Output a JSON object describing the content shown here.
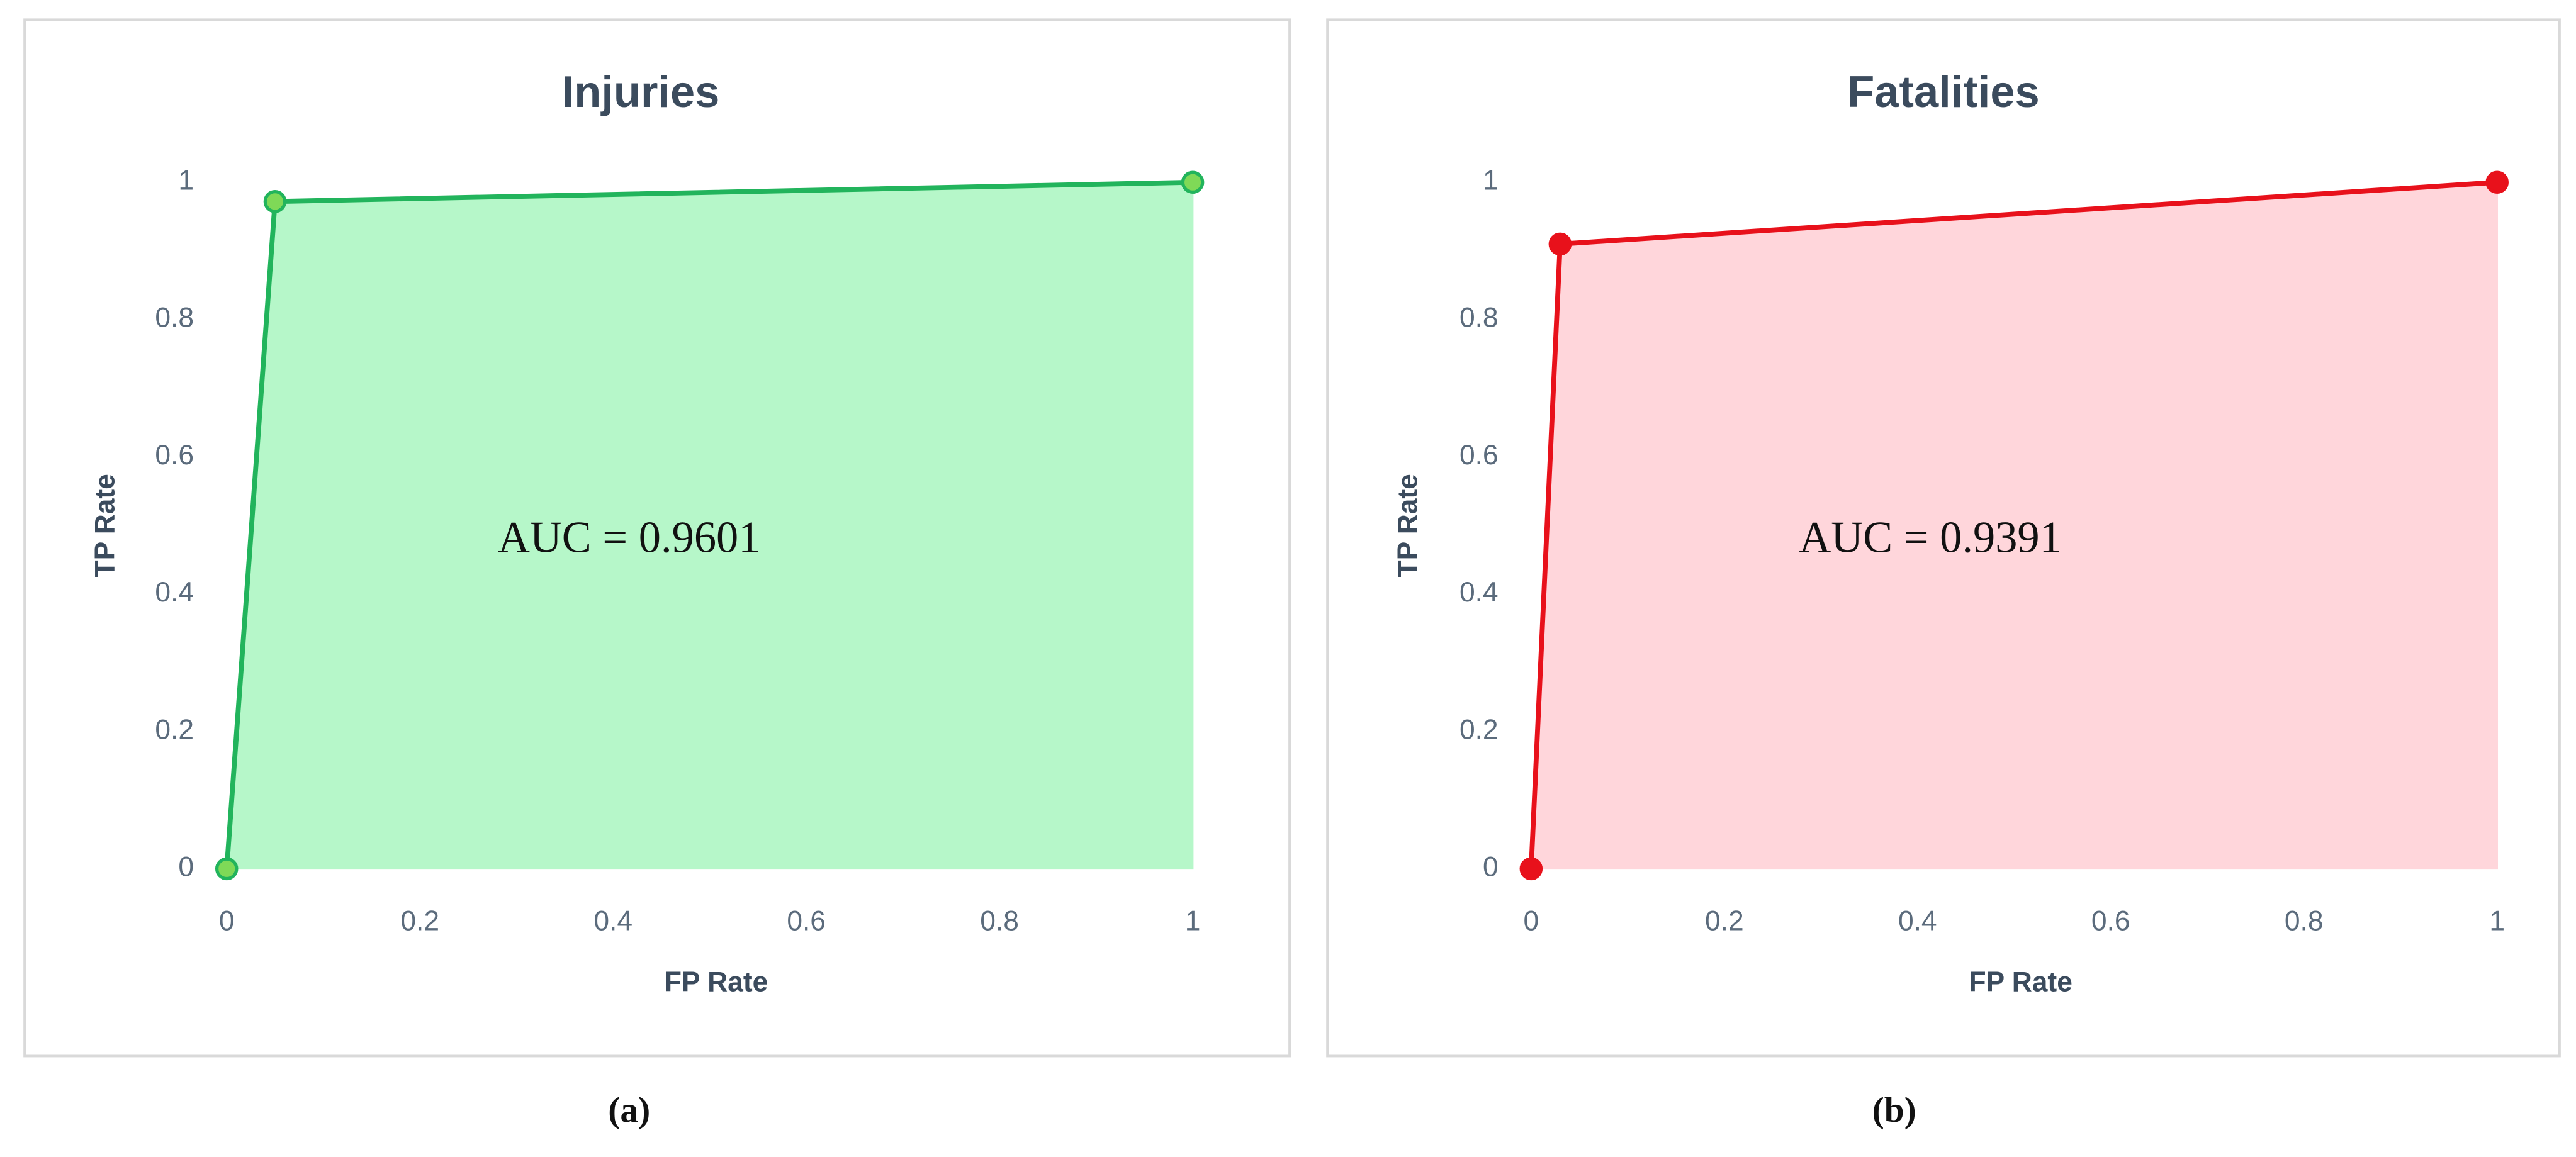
{
  "chart_data": [
    {
      "type": "area",
      "title": "Injuries",
      "x_label": "FP Rate",
      "y_label": "TP Rate",
      "x": [
        0,
        0.05,
        1
      ],
      "values": [
        0,
        0.972,
        1
      ],
      "color": "#22b45c",
      "fill": "#b6f7c9",
      "marker_color": "#7fd957",
      "xlim": [
        0,
        1
      ],
      "ylim": [
        0,
        1
      ],
      "xticks": [
        0,
        0.2,
        0.4,
        0.6,
        0.8,
        1
      ],
      "yticks": [
        0,
        0.2,
        0.4,
        0.6,
        0.8,
        1
      ],
      "annotation": "AUC = 0.9601",
      "caption": "(a)"
    },
    {
      "type": "area",
      "title": "Fatalities",
      "x_label": "FP Rate",
      "y_label": "TP Rate",
      "x": [
        0,
        0.03,
        1
      ],
      "values": [
        0,
        0.91,
        1
      ],
      "color": "#e8111b",
      "fill": "#ffd6db",
      "marker_color": "#e8111b",
      "xlim": [
        0,
        1
      ],
      "ylim": [
        0,
        1
      ],
      "xticks": [
        0,
        0.2,
        0.4,
        0.6,
        0.8,
        1
      ],
      "yticks": [
        0,
        0.2,
        0.4,
        0.6,
        0.8,
        1
      ],
      "annotation": "AUC = 0.9391",
      "caption": "(b)"
    }
  ]
}
